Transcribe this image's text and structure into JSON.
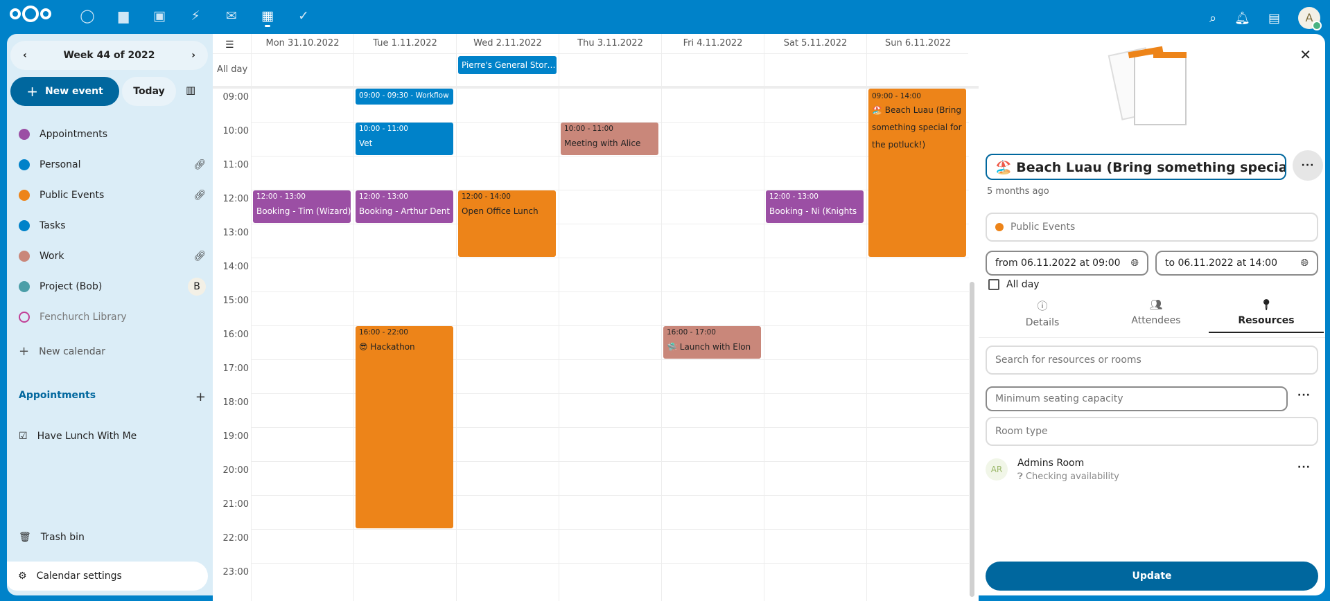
{
  "topbar": {
    "apps": [
      "dashboard",
      "files",
      "photos",
      "activity",
      "mail",
      "calendar",
      "tasks"
    ],
    "active": "calendar",
    "avatar": "A"
  },
  "sidebar": {
    "week_label": "Week 44 of 2022",
    "new_event": "New event",
    "today": "Today",
    "calendars": [
      {
        "name": "Appointments",
        "color": "#9b4fa4",
        "link": false
      },
      {
        "name": "Personal",
        "color": "#0082c9",
        "link": true
      },
      {
        "name": "Public Events",
        "color": "#ed8419",
        "link": true
      },
      {
        "name": "Tasks",
        "color": "#0082c9",
        "link": false
      },
      {
        "name": "Work",
        "color": "#c9877a",
        "link": true
      },
      {
        "name": "Project (Bob)",
        "color": "#4b9ea8",
        "link": false,
        "badge": "B"
      },
      {
        "name": "Fenchurch Library",
        "color": "#c13e96",
        "link": false,
        "disabled": true
      }
    ],
    "new_calendar": "New calendar",
    "appointments_header": "Appointments",
    "appointment_items": [
      "Have Lunch With Me"
    ],
    "trash": "Trash bin",
    "settings": "Calendar settings"
  },
  "calendar": {
    "days": [
      "Mon 31.10.2022",
      "Tue 1.11.2022",
      "Wed 2.11.2022",
      "Thu 3.11.2022",
      "Fri 4.11.2022",
      "Sat 5.11.2022",
      "Sun 6.11.2022"
    ],
    "all_day_label": "All day",
    "hours": [
      "09:00",
      "10:00",
      "11:00",
      "12:00",
      "13:00",
      "14:00",
      "15:00",
      "16:00",
      "17:00",
      "18:00",
      "19:00",
      "20:00",
      "21:00",
      "22:00",
      "23:00"
    ],
    "all_day_events": [
      {
        "day": 2,
        "title": "Pierre's General Stor…",
        "color": "#0082c9"
      }
    ],
    "events": [
      {
        "day": 1,
        "start": "09:00",
        "end": "09:30",
        "time": "09:00 - 09:30",
        "title": "Workflow",
        "color": "#0082c9",
        "fg": "#fff",
        "inline": true
      },
      {
        "day": 1,
        "start": "10:00",
        "end": "11:00",
        "time": "10:00 - 11:00",
        "title": "Vet",
        "color": "#0082c9",
        "fg": "#fff"
      },
      {
        "day": 3,
        "start": "10:00",
        "end": "11:00",
        "time": "10:00 - 11:00",
        "title": "Meeting with Alice",
        "color": "#c9877a",
        "fg": "#222"
      },
      {
        "day": 0,
        "start": "12:00",
        "end": "13:00",
        "time": "12:00 - 13:00",
        "title": "Booking - Tim (Wizard)",
        "color": "#9b4fa4",
        "fg": "#fff"
      },
      {
        "day": 1,
        "start": "12:00",
        "end": "13:00",
        "time": "12:00 - 13:00",
        "title": "Booking - Arthur Dent",
        "color": "#9b4fa4",
        "fg": "#fff"
      },
      {
        "day": 2,
        "start": "12:00",
        "end": "14:00",
        "time": "12:00 - 14:00",
        "title": "Open Office Lunch",
        "color": "#ed8419",
        "fg": "#222"
      },
      {
        "day": 5,
        "start": "12:00",
        "end": "13:00",
        "time": "12:00 - 13:00",
        "title": "Booking - Ni (Knights",
        "color": "#9b4fa4",
        "fg": "#fff"
      },
      {
        "day": 6,
        "start": "09:00",
        "end": "14:00",
        "time": "09:00 - 14:00",
        "title": "🏖️ Beach Luau (Bring something special for the potluck!)",
        "color": "#ed8419",
        "fg": "#222",
        "wrap": true
      },
      {
        "day": 1,
        "start": "16:00",
        "end": "22:00",
        "time": "16:00 - 22:00",
        "title": "😎 Hackathon",
        "color": "#ed8419",
        "fg": "#222"
      },
      {
        "day": 4,
        "start": "16:00",
        "end": "17:00",
        "time": "16:00 - 17:00",
        "title": "🛸 Launch with Elon",
        "color": "#c9877a",
        "fg": "#222"
      }
    ]
  },
  "editor": {
    "title": "🏖️ Beach Luau (Bring something special for",
    "modified": "5 months ago",
    "calendar": "Public Events",
    "calendar_color": "#ed8419",
    "from": "from 06.11.2022 at 09:00",
    "to": "to 06.11.2022 at 14:00",
    "all_day": "All day",
    "all_day_checked": false,
    "tabs": [
      {
        "label": "Details",
        "icon": "info-icon"
      },
      {
        "label": "Attendees",
        "icon": "people-icon"
      },
      {
        "label": "Resources",
        "icon": "map-pin-icon",
        "active": true
      }
    ],
    "search_placeholder": "Search for resources or rooms",
    "capacity_placeholder": "Minimum seating capacity",
    "room_type_placeholder": "Room type",
    "resource": {
      "initials": "AR",
      "name": "Admins Room",
      "status": "Checking availability"
    },
    "update": "Update"
  }
}
